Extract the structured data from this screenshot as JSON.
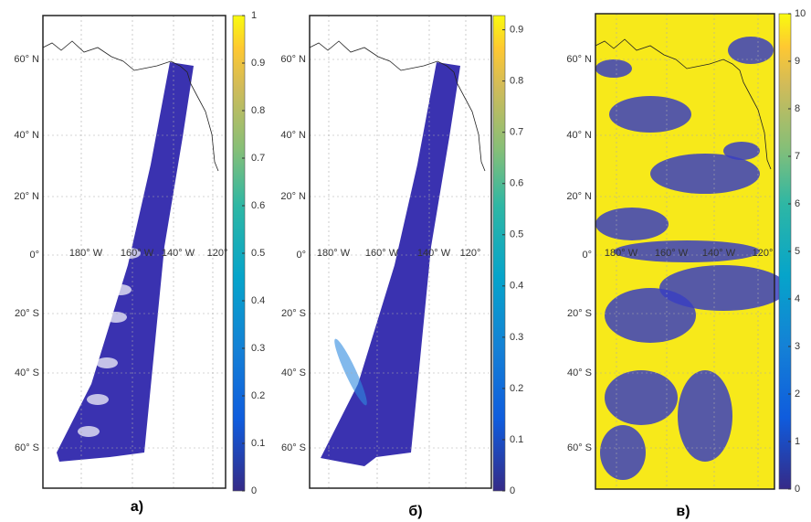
{
  "panels": [
    {
      "caption": "а)",
      "lat_labels": [
        "60° N",
        "40° N",
        "20° N",
        "0°",
        "20° S",
        "40° S",
        "60° S"
      ],
      "lon_labels": [
        "180° W",
        "160° W",
        "140° W",
        "120°"
      ],
      "colorbar_ticks": [
        0,
        0.1,
        0.2,
        0.3,
        0.4,
        0.5,
        0.6,
        0.7,
        0.8,
        0.9,
        1
      ]
    },
    {
      "caption": "б)",
      "lat_labels": [
        "60° N",
        "40° N",
        "20° N",
        "0°",
        "20° S",
        "40° S",
        "60° S"
      ],
      "lon_labels": [
        "180° W",
        "160° W",
        "140° W",
        "120°"
      ],
      "colorbar_ticks": [
        0,
        0.1,
        0.2,
        0.3,
        0.4,
        0.5,
        0.6,
        0.7,
        0.8,
        0.9
      ]
    },
    {
      "caption": "в)",
      "lat_labels": [
        "60° N",
        "40° N",
        "20° N",
        "0°",
        "20° S",
        "40° S",
        "60° S"
      ],
      "lon_labels": [
        "180° W",
        "160° W",
        "140° W",
        "120°"
      ],
      "colorbar_ticks": [
        0,
        1,
        2,
        3,
        4,
        5,
        6,
        7,
        8,
        9,
        10
      ]
    }
  ]
}
